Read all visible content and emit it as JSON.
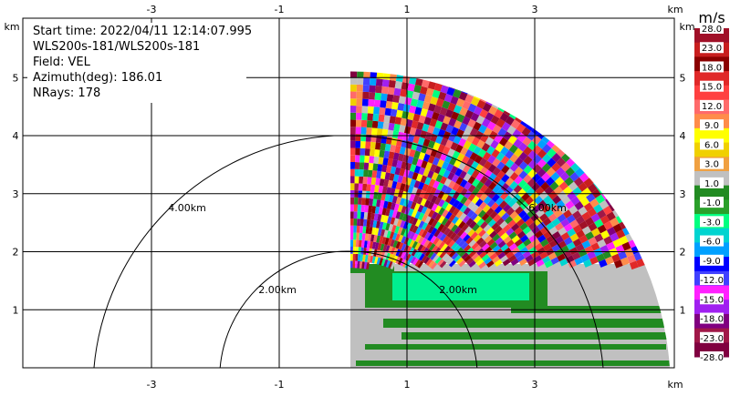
{
  "info": {
    "start_time": "Start time: 2022/04/11 12:14:07.995",
    "instrument": "WLS200s-181/WLS200s-181",
    "field": "Field: VEL",
    "azimuth": "Azimuth(deg): 186.01",
    "nrays": "NRays: 178"
  },
  "axes": {
    "unit_label": "km",
    "x_ticks": [
      "-3",
      "-1",
      "1",
      "3"
    ],
    "y_ticks": [
      "1",
      "2",
      "3",
      "4",
      "5"
    ]
  },
  "colorbar": {
    "title": "m/s",
    "labels": [
      "28.0",
      "23.0",
      "18.0",
      "15.0",
      "12.0",
      "9.0",
      "6.0",
      "3.0",
      "1.0",
      "-1.0",
      "-3.0",
      "-6.0",
      "-9.0",
      "-12.0",
      "-15.0",
      "-18.0",
      "-23.0",
      "-28.0"
    ],
    "colors": [
      "#a01028",
      "#c81e1e",
      "#8b0000",
      "#e02828",
      "#ff4040",
      "#ff6a6a",
      "#ff8c4a",
      "#ffff00",
      "#f0d000",
      "#f0a040",
      "#c0c0c0",
      "#228b22",
      "#2aa02a",
      "#00ff80",
      "#00d4d0",
      "#00a0ff",
      "#0000ff",
      "#4040ff",
      "#ff20ff",
      "#a020f0",
      "#800080",
      "#a01848",
      "#800040"
    ]
  },
  "chart_data": {
    "type": "heatmap",
    "description_field": "VEL",
    "x_unit": "km",
    "y_unit": "km",
    "xlim": [
      -4,
      4.2
    ],
    "ylim": [
      0,
      5.5
    ],
    "x_ticks": [
      -3,
      -1,
      1,
      3
    ],
    "y_ticks": [
      1,
      2,
      3,
      4,
      5
    ],
    "grid": true,
    "range_rings": [
      {
        "radius_km": 2.0,
        "label": "2.00km"
      },
      {
        "radius_km": 4.0,
        "label": "4.00km"
      },
      {
        "radius_km": 6.0,
        "label": "6.00km"
      }
    ],
    "sector": {
      "azimuth_start_deg": 0,
      "azimuth_end_deg": 90,
      "max_range_km": 5.2
    },
    "colorbar_unit": "m/s",
    "colorbar_levels": [
      28.0,
      23.0,
      18.0,
      15.0,
      12.0,
      9.0,
      6.0,
      3.0,
      1.0,
      -1.0,
      -3.0,
      -6.0,
      -9.0,
      -12.0,
      -15.0,
      -18.0,
      -23.0,
      -28.0
    ],
    "ring_labels": [
      "2.00km",
      "4.00km",
      "6.00km",
      "2.00km"
    ]
  }
}
